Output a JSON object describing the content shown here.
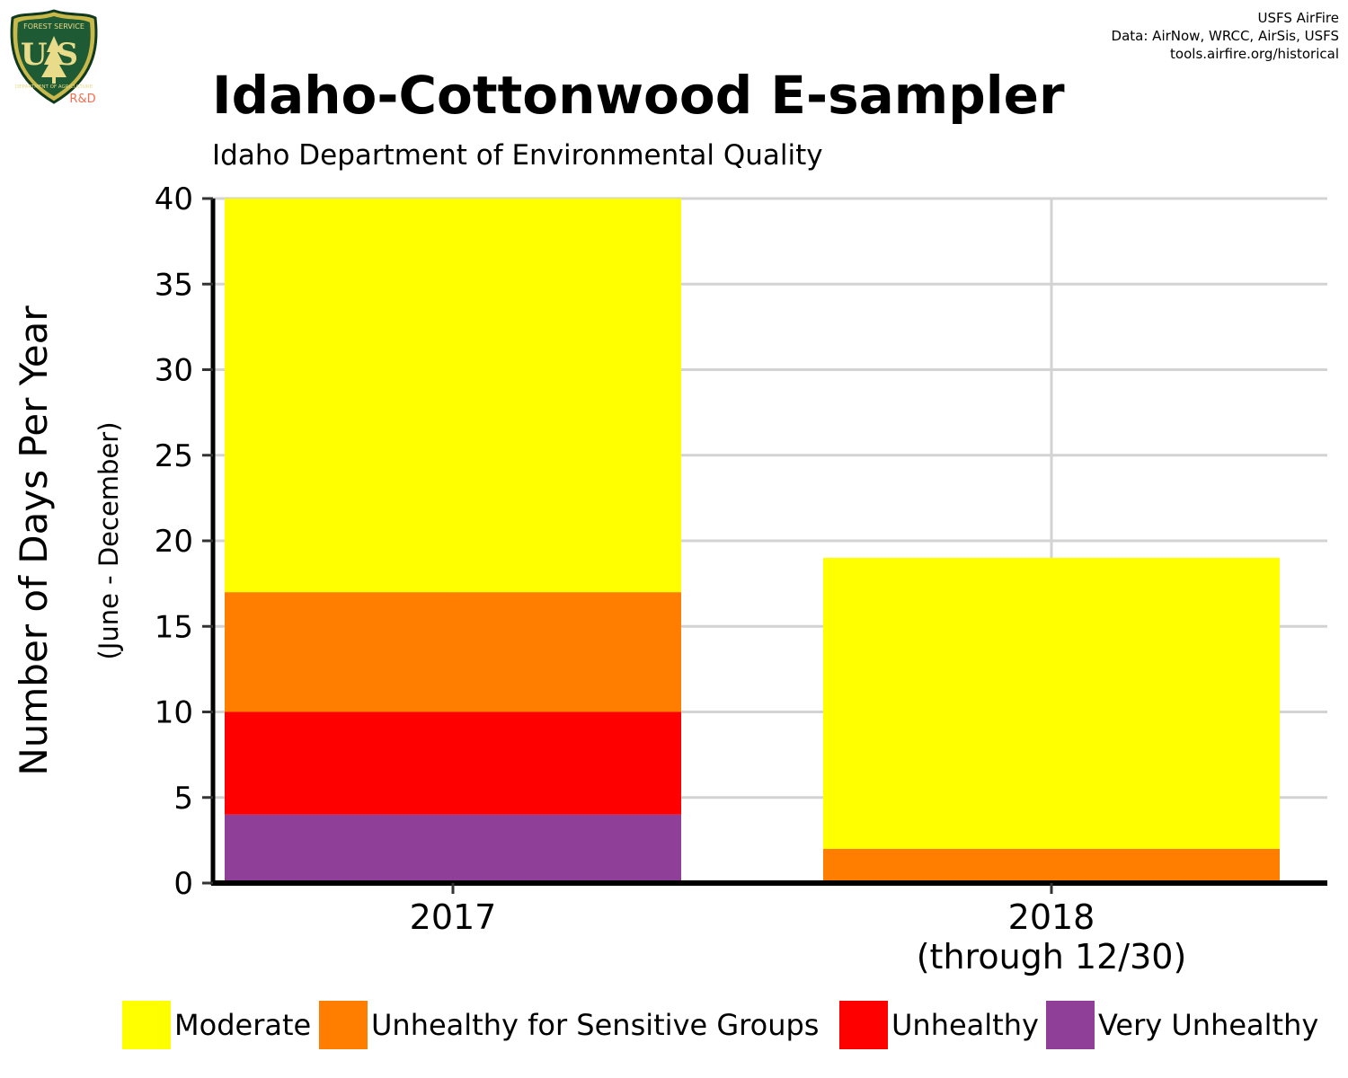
{
  "header": {
    "credit_lines": [
      "USFS AirFire",
      "Data: AirNow, WRCC, AirSis, USFS",
      "tools.airfire.org/historical"
    ],
    "logo": {
      "icon": "usfs-shield-logo",
      "top_text": "FOREST SERVICE",
      "letters": "US",
      "bottom_text": "DEPARTMENT OF AGRICULTURE",
      "rd_text": "R&D"
    }
  },
  "chart_data": {
    "type": "bar",
    "stacked": true,
    "title": "Idaho-Cottonwood E-sampler",
    "subtitle": "Idaho Department of Environmental Quality",
    "ylabel": "Number of Days Per Year",
    "ylabel_sub": "(June - December)",
    "xlabel": "",
    "ylim": [
      0,
      40
    ],
    "yticks": [
      0,
      5,
      10,
      15,
      20,
      25,
      30,
      35,
      40
    ],
    "grid": true,
    "legend_position": "bottom",
    "categories": [
      "2017",
      "2018\n(through 12/30)"
    ],
    "series": [
      {
        "name": "Very Unhealthy",
        "color": "#8F3F97",
        "values": [
          4,
          0
        ]
      },
      {
        "name": "Unhealthy",
        "color": "#FF0000",
        "values": [
          6,
          0
        ]
      },
      {
        "name": "Unhealthy for Sensitive Groups",
        "color": "#FF7E00",
        "values": [
          7,
          2
        ]
      },
      {
        "name": "Moderate",
        "color": "#FFFF00",
        "values": [
          23,
          17
        ]
      }
    ],
    "legend_order": [
      "Moderate",
      "Unhealthy for Sensitive Groups",
      "Unhealthy",
      "Very Unhealthy"
    ],
    "colors": {
      "grid": "#D3D3D3",
      "axis": "#000000"
    }
  }
}
